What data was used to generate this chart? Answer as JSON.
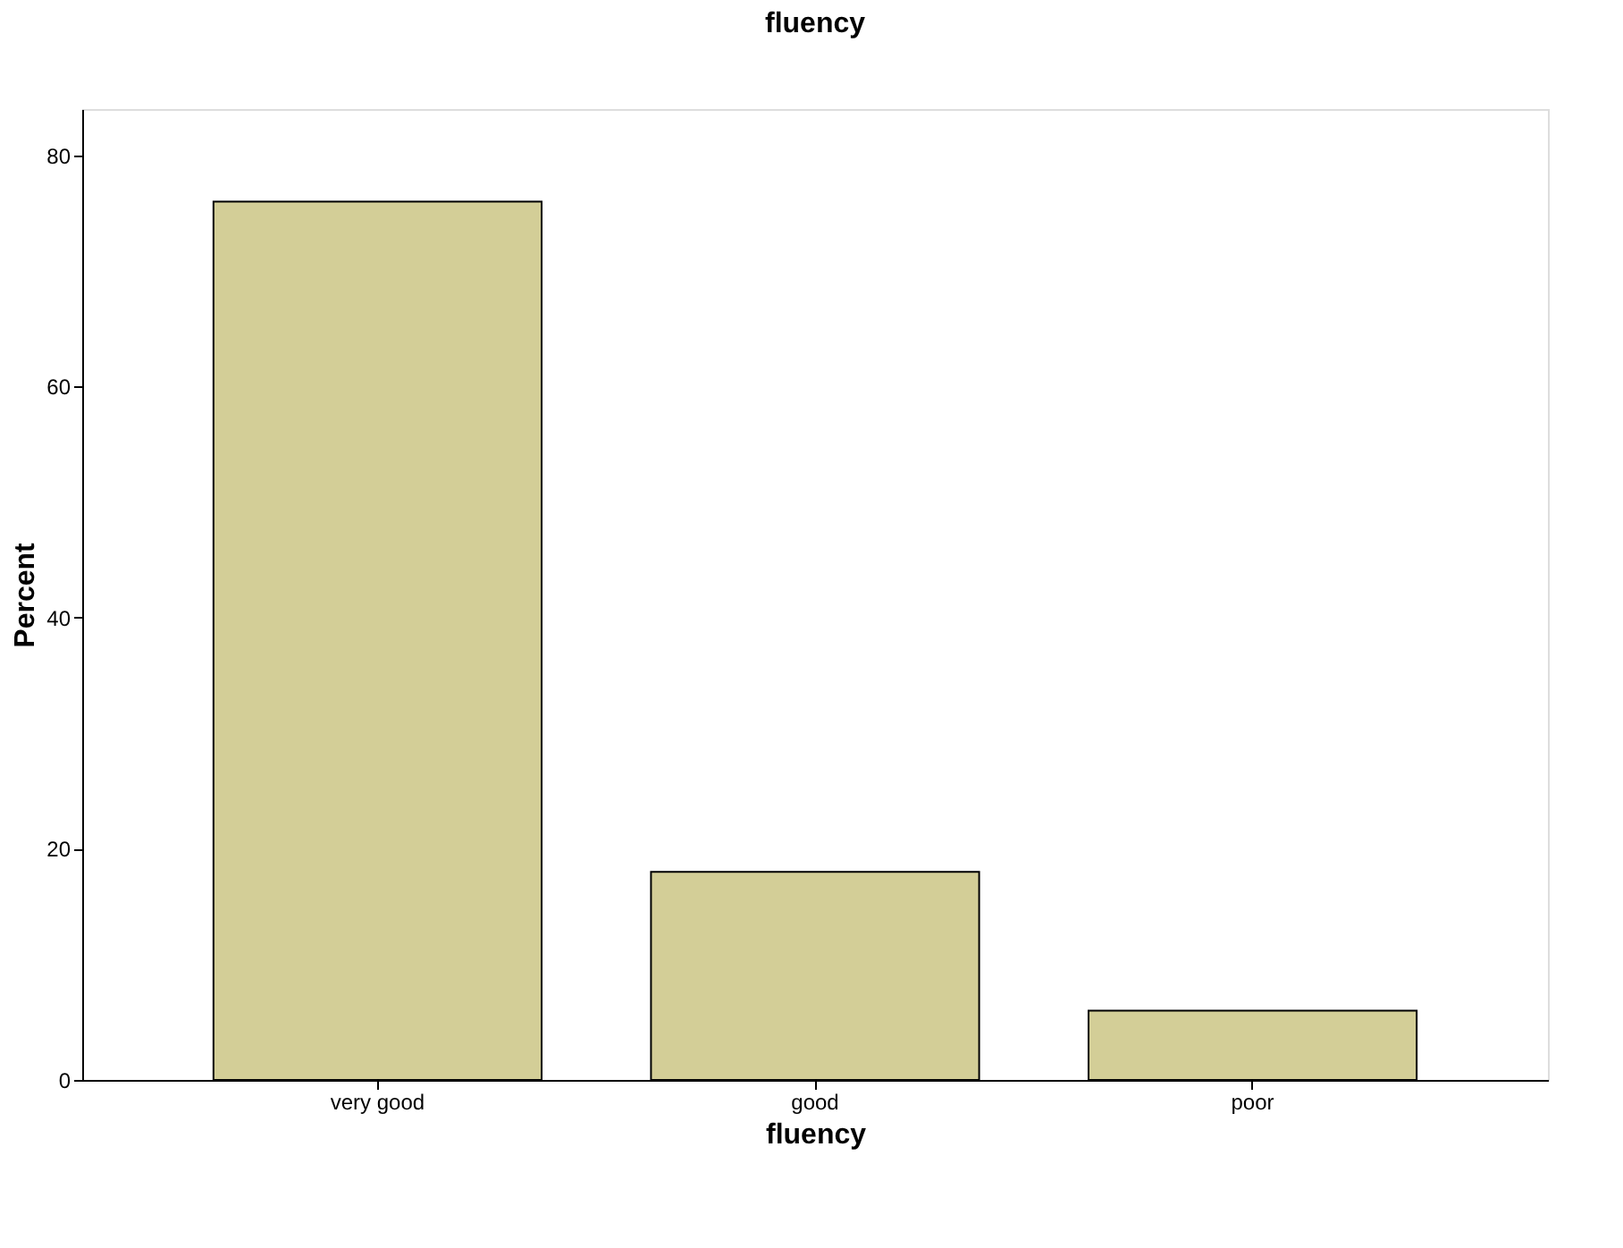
{
  "chart_data": {
    "type": "bar",
    "title": "fluency",
    "xlabel": "fluency",
    "ylabel": "Percent",
    "categories": [
      "very good",
      "good",
      "poor"
    ],
    "values": [
      76,
      18,
      6
    ],
    "color": "#d3ce97",
    "ylim": [
      0,
      84
    ],
    "yticks": [
      0,
      20,
      40,
      60,
      80
    ],
    "grid": false
  }
}
